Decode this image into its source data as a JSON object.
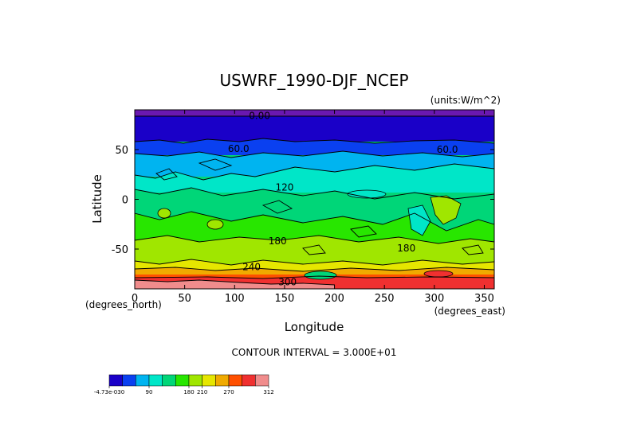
{
  "chart_data": {
    "type": "heatmap",
    "title": "USWRF_1990-DJF_NCEP",
    "units": "(units:W/m^2)",
    "xlabel": "Longitude",
    "ylabel": "Latitude",
    "x_unit_label": "(degrees_east)",
    "y_unit_label": "(degrees_north)",
    "xlim": [
      0,
      360
    ],
    "ylim": [
      -90,
      90
    ],
    "x_ticks": [
      "0",
      "50",
      "100",
      "150",
      "200",
      "250",
      "300",
      "350"
    ],
    "x_tick_values": [
      0,
      50,
      100,
      150,
      200,
      250,
      300,
      350
    ],
    "y_ticks": [
      "50",
      "0",
      "-50"
    ],
    "y_tick_values": [
      50,
      0,
      -50
    ],
    "contour_interval": "CONTOUR INTERVAL = 3.000E+01",
    "contour_labels": [
      {
        "text": "0.00",
        "lon": 125,
        "lat": 84
      },
      {
        "text": "60.0",
        "lon": 104,
        "lat": 51
      },
      {
        "text": "60.0",
        "lon": 313,
        "lat": 50
      },
      {
        "text": "120",
        "lon": 150,
        "lat": 12
      },
      {
        "text": "180",
        "lon": 143,
        "lat": -42
      },
      {
        "text": "180",
        "lon": 272,
        "lat": -49
      },
      {
        "text": "240",
        "lon": 117,
        "lat": -68
      },
      {
        "text": "300",
        "lon": 153,
        "lat": -83
      }
    ],
    "latitude_bands": [
      {
        "lat_top": 90,
        "lat_bottom": 84,
        "value_range": "-4.73e-030 to 0"
      },
      {
        "lat_top": 84,
        "lat_bottom": 60,
        "value_range": "30-60"
      },
      {
        "lat_top": 60,
        "lat_bottom": 48,
        "value_range": "60-90"
      },
      {
        "lat_top": 48,
        "lat_bottom": 28,
        "value_range": "90-120"
      },
      {
        "lat_top": 28,
        "lat_bottom": 8,
        "value_range": "120-150"
      },
      {
        "lat_top": 8,
        "lat_bottom": -15,
        "value_range": "150-180"
      },
      {
        "lat_top": -15,
        "lat_bottom": -38,
        "value_range": "150-180"
      },
      {
        "lat_top": -38,
        "lat_bottom": -62,
        "value_range": "180-210"
      },
      {
        "lat_top": -62,
        "lat_bottom": -72,
        "value_range": "210-240"
      },
      {
        "lat_top": -72,
        "lat_bottom": -80,
        "value_range": "240-300"
      },
      {
        "lat_top": -80,
        "lat_bottom": -90,
        "value_range": "270-312"
      }
    ],
    "colorbar": {
      "colors": [
        "#1a00c8",
        "#0a40f0",
        "#00b4f0",
        "#00e6c8",
        "#00d678",
        "#28e600",
        "#a0e600",
        "#e6e600",
        "#f0aa00",
        "#ff5000",
        "#f03030",
        "#f08c8c"
      ],
      "labels": [
        "-4.73e-030",
        "90",
        "180",
        "210",
        "270",
        "312"
      ],
      "label_positions": [
        0,
        3,
        6,
        7,
        9,
        12
      ]
    }
  }
}
